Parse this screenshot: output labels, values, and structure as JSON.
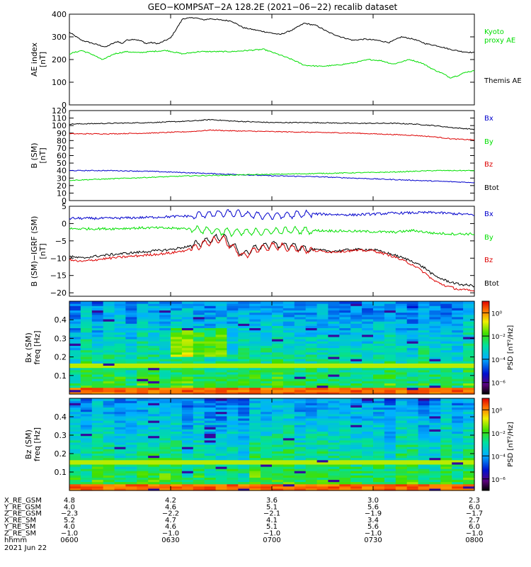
{
  "title": "GEO−KOMPSAT−2A 128.2E (2021−06−22) recalib dataset",
  "colors": {
    "black": "#000000",
    "red": "#dd0000",
    "green": "#00e000",
    "blue": "#0000cc",
    "kyoto": "#00dd00"
  },
  "chart_data": [
    {
      "type": "line",
      "name": "ae-index",
      "ylabel": [
        "AE index",
        "[nT]"
      ],
      "ylim": [
        0,
        400
      ],
      "yticks": [
        0,
        100,
        200,
        300,
        400
      ],
      "xlim": [
        0,
        1
      ],
      "series": [
        {
          "name": "Themis AE",
          "color": "#000000",
          "x": [
            0,
            0.03,
            0.06,
            0.09,
            0.1,
            0.12,
            0.13,
            0.14,
            0.16,
            0.18,
            0.19,
            0.2,
            0.22,
            0.25,
            0.28,
            0.31,
            0.33,
            0.35,
            0.37,
            0.4,
            0.43,
            0.46,
            0.49,
            0.52,
            0.55,
            0.58,
            0.61,
            0.64,
            0.67,
            0.7,
            0.73,
            0.76,
            0.79,
            0.82,
            0.85,
            0.88,
            0.91,
            0.94,
            0.97,
            1.0
          ],
          "y": [
            320,
            285,
            270,
            255,
            265,
            280,
            270,
            285,
            290,
            280,
            270,
            275,
            270,
            295,
            380,
            385,
            375,
            380,
            375,
            370,
            340,
            330,
            320,
            310,
            330,
            360,
            350,
            320,
            300,
            285,
            290,
            285,
            275,
            300,
            290,
            270,
            260,
            245,
            235,
            230
          ]
        },
        {
          "name": "Kyoto proxy AE",
          "color": "#00dd00",
          "x": [
            0,
            0.03,
            0.06,
            0.08,
            0.09,
            0.11,
            0.14,
            0.17,
            0.2,
            0.24,
            0.28,
            0.32,
            0.36,
            0.4,
            0.44,
            0.48,
            0.52,
            0.55,
            0.58,
            0.62,
            0.66,
            0.7,
            0.74,
            0.77,
            0.8,
            0.84,
            0.87,
            0.9,
            0.92,
            0.94,
            0.96,
            0.98,
            1.0
          ],
          "y": [
            225,
            240,
            220,
            200,
            205,
            225,
            235,
            230,
            235,
            240,
            225,
            235,
            235,
            235,
            240,
            245,
            220,
            200,
            175,
            170,
            175,
            185,
            200,
            195,
            180,
            200,
            185,
            155,
            140,
            120,
            130,
            145,
            150
          ]
        }
      ],
      "legend": [
        {
          "label": "Kyoto",
          "color": "#00dd00"
        },
        {
          "label": "proxy AE",
          "color": "#00dd00"
        },
        {
          "label": "Themis AE",
          "color": "#000000"
        }
      ]
    },
    {
      "type": "line",
      "name": "b-sm",
      "ylabel": [
        "B (SM)",
        "[nT]"
      ],
      "ylim": [
        0,
        120
      ],
      "yticks": [
        0,
        10,
        20,
        30,
        40,
        50,
        60,
        70,
        80,
        90,
        100,
        110,
        120
      ],
      "xlim": [
        0,
        1
      ],
      "series": [
        {
          "name": "Btot",
          "color": "#000000",
          "x": [
            0,
            0.1,
            0.2,
            0.3,
            0.35,
            0.4,
            0.5,
            0.6,
            0.7,
            0.8,
            0.85,
            0.9,
            0.95,
            1.0
          ],
          "y": [
            102,
            103,
            104,
            106,
            108,
            106,
            104,
            104,
            103,
            103,
            102,
            100,
            97,
            95
          ]
        },
        {
          "name": "Bz",
          "color": "#dd0000",
          "x": [
            0,
            0.1,
            0.2,
            0.3,
            0.35,
            0.4,
            0.5,
            0.6,
            0.7,
            0.8,
            0.85,
            0.9,
            0.95,
            1.0
          ],
          "y": [
            89,
            89,
            90,
            92,
            94,
            93,
            92,
            91,
            90,
            88,
            87,
            85,
            82,
            81
          ]
        },
        {
          "name": "Bx",
          "color": "#0000cc",
          "x": [
            0,
            0.1,
            0.2,
            0.3,
            0.4,
            0.5,
            0.6,
            0.7,
            0.8,
            0.9,
            1.0
          ],
          "y": [
            40,
            40,
            39,
            37,
            35,
            33,
            32,
            30,
            28,
            26,
            24
          ]
        },
        {
          "name": "By",
          "color": "#00e000",
          "x": [
            0,
            0.1,
            0.2,
            0.3,
            0.4,
            0.5,
            0.6,
            0.7,
            0.8,
            0.9,
            1.0
          ],
          "y": [
            27,
            29,
            31,
            33,
            34,
            35,
            36,
            37,
            38,
            40,
            40
          ]
        }
      ],
      "legend": [
        {
          "label": "Bx",
          "color": "#0000cc"
        },
        {
          "label": "By",
          "color": "#00e000"
        },
        {
          "label": "Bz",
          "color": "#dd0000"
        },
        {
          "label": "Btot",
          "color": "#000000"
        }
      ]
    },
    {
      "type": "line",
      "name": "b-sm-minus-igrf",
      "ylabel": [
        "B (SM)−IGRF (SM)",
        "[nT]"
      ],
      "ylim": [
        -21,
        5
      ],
      "yticks": [
        -20,
        -15,
        -10,
        -5,
        0,
        5
      ],
      "xlim": [
        0,
        1
      ],
      "series": [
        {
          "name": "Bx",
          "color": "#0000cc",
          "x": [
            0,
            0.1,
            0.2,
            0.3,
            0.35,
            0.4,
            0.45,
            0.5,
            0.55,
            0.6,
            0.7,
            0.8,
            0.9,
            1.0
          ],
          "y": [
            1.5,
            1.5,
            1.8,
            2.2,
            2.8,
            3.0,
            2.5,
            2.2,
            2.5,
            2.8,
            2.5,
            3.0,
            3.2,
            2.5
          ]
        },
        {
          "name": "By",
          "color": "#00e000",
          "x": [
            0,
            0.1,
            0.2,
            0.3,
            0.35,
            0.4,
            0.45,
            0.5,
            0.55,
            0.6,
            0.7,
            0.8,
            0.85,
            0.9,
            0.95,
            1.0
          ],
          "y": [
            -1.5,
            -1.5,
            -1.2,
            -1.5,
            -2.0,
            -2.5,
            -2.5,
            -2.2,
            -2.0,
            -2.0,
            -2.2,
            -2.5,
            -2.0,
            -2.8,
            -3.0,
            -3.0
          ]
        },
        {
          "name": "Btot",
          "color": "#000000",
          "x": [
            0,
            0.03,
            0.06,
            0.1,
            0.15,
            0.2,
            0.25,
            0.3,
            0.35,
            0.38,
            0.4,
            0.43,
            0.46,
            0.5,
            0.55,
            0.6,
            0.65,
            0.7,
            0.75,
            0.8,
            0.85,
            0.88,
            0.9,
            0.93,
            0.96,
            1.0
          ],
          "y": [
            -9.5,
            -10,
            -9.5,
            -9,
            -8.5,
            -8,
            -7.5,
            -6.5,
            -4.5,
            -3.8,
            -6,
            -9,
            -7,
            -6,
            -6.5,
            -7.5,
            -8,
            -7.5,
            -7.5,
            -9,
            -11,
            -13,
            -15,
            -16.5,
            -17.5,
            -18
          ]
        },
        {
          "name": "Bz",
          "color": "#dd0000",
          "x": [
            0,
            0.03,
            0.06,
            0.1,
            0.15,
            0.2,
            0.25,
            0.3,
            0.35,
            0.38,
            0.4,
            0.43,
            0.46,
            0.5,
            0.55,
            0.6,
            0.65,
            0.7,
            0.75,
            0.8,
            0.85,
            0.88,
            0.9,
            0.93,
            0.96,
            1.0
          ],
          "y": [
            -10.5,
            -11,
            -10.5,
            -10,
            -9.5,
            -9,
            -8.5,
            -7.5,
            -5,
            -4.5,
            -6.5,
            -9.5,
            -7.5,
            -6.5,
            -7,
            -7.8,
            -8.2,
            -7.8,
            -7.8,
            -9.5,
            -12,
            -14.5,
            -16.5,
            -18,
            -19,
            -19.5
          ]
        }
      ],
      "legend": [
        {
          "label": "Bx",
          "color": "#0000cc"
        },
        {
          "label": "By",
          "color": "#00e000"
        },
        {
          "label": "Bz",
          "color": "#dd0000"
        },
        {
          "label": "Btot",
          "color": "#000000"
        }
      ]
    },
    {
      "type": "heatmap",
      "name": "bx-spectrogram",
      "ylabel": [
        "Bx (SM)",
        "freq [Hz]"
      ],
      "ylim": [
        0,
        0.5
      ],
      "yticks": [
        0.1,
        0.2,
        0.3,
        0.4
      ],
      "colorbar": {
        "label": "PSD [nT²/Hz]",
        "ticks": [
          "10⁰",
          "10⁻²",
          "10⁻⁴",
          "10⁻⁶"
        ],
        "tick_logs": [
          0,
          -2,
          -4,
          -6
        ],
        "range_logs": [
          -7,
          1
        ]
      }
    },
    {
      "type": "heatmap",
      "name": "bz-spectrogram",
      "ylabel": [
        "Bz (SM)",
        "freq [Hz]"
      ],
      "ylim": [
        0,
        0.5
      ],
      "yticks": [
        0.1,
        0.2,
        0.3,
        0.4
      ],
      "colorbar": {
        "label": "PSD [nT²/Hz]",
        "ticks": [
          "10⁰",
          "10⁻²",
          "10⁻⁴",
          "10⁻⁶"
        ],
        "tick_logs": [
          0,
          -2,
          -4,
          -6
        ],
        "range_logs": [
          -7,
          1
        ]
      }
    }
  ],
  "ephemeris": {
    "labels": [
      "X_RE_GSM",
      "Y_RE_GSM",
      "Z_RE_GSM",
      "X_RE_SM",
      "Y_RE_SM",
      "Z_RE_SM",
      "hhmm",
      "2021 Jun 22"
    ],
    "columns": [
      {
        "values": [
          "4.8",
          "4.0",
          "−2.3",
          "5.2",
          "4.0",
          "−1.0",
          "0600"
        ]
      },
      {
        "values": [
          "4.2",
          "4.6",
          "−2.2",
          "4.7",
          "4.6",
          "−1.0",
          "0630"
        ]
      },
      {
        "values": [
          "3.6",
          "5.1",
          "−2.1",
          "4.1",
          "5.1",
          "−1.0",
          "0700"
        ]
      },
      {
        "values": [
          "3.0",
          "5.6",
          "−1.9",
          "3.4",
          "5.6",
          "−1.0",
          "0730"
        ]
      },
      {
        "values": [
          "2.3",
          "6.0",
          "−1.7",
          "2.7",
          "6.0",
          "−1.0",
          "0800"
        ]
      }
    ]
  }
}
